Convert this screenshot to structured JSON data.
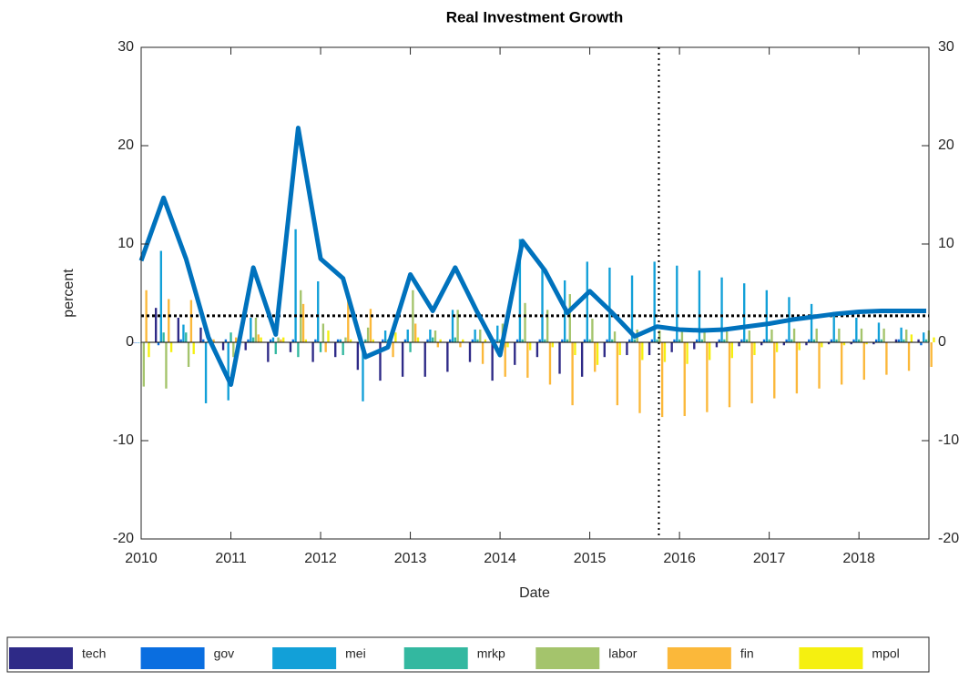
{
  "chart_data": {
    "type": "bar",
    "title": "Real Investment Growth",
    "xlabel": "Date",
    "ylabel": "percent",
    "x": [
      2010,
      2010.25,
      2010.5,
      2010.75,
      2011,
      2011.25,
      2011.5,
      2011.75,
      2012,
      2012.25,
      2012.5,
      2012.75,
      2013,
      2013.25,
      2013.5,
      2013.75,
      2014,
      2014.25,
      2014.5,
      2014.75,
      2015,
      2015.25,
      2015.5,
      2015.75,
      2016,
      2016.25,
      2016.5,
      2016.75,
      2017,
      2017.25,
      2017.5,
      2017.75,
      2018,
      2018.25,
      2018.5,
      2018.75
    ],
    "xlim": [
      2010,
      2018.78
    ],
    "xticks": [
      2010,
      2011,
      2012,
      2013,
      2014,
      2015,
      2016,
      2017,
      2018
    ],
    "ylim": [
      -20,
      30
    ],
    "yticks": [
      -20,
      -10,
      0,
      10,
      20,
      30
    ],
    "y2lim": [
      -20,
      30
    ],
    "y2ticks": [
      -20,
      -10,
      0,
      10,
      20,
      30
    ],
    "legend": "bottom",
    "series": [
      {
        "name": "tech",
        "color": "#2e2a87",
        "values": [
          0,
          3.5,
          2.5,
          1.5,
          -0.8,
          -0.8,
          -2,
          -1,
          -2,
          -1.5,
          -2.8,
          -3.9,
          -3.5,
          -3.5,
          -3,
          -2,
          -3.9,
          -2.3,
          -1.5,
          -3.2,
          -3.5,
          -1.5,
          -1.3,
          -1.3,
          -1,
          -0.7,
          -0.5,
          -0.4,
          -0.3,
          -0.3,
          -0.3,
          -0.2,
          -0.2,
          -0.2,
          0.3,
          0.3
        ]
      },
      {
        "name": "gov",
        "color": "#0a6ee0",
        "values": [
          0,
          -0.3,
          0.3,
          0.3,
          0.3,
          0.3,
          0.3,
          0.3,
          0.3,
          0.3,
          0.3,
          0.3,
          0.3,
          0.3,
          0.3,
          0.3,
          0.3,
          0.3,
          0.3,
          0.3,
          0.3,
          0.3,
          0.3,
          0.3,
          0.3,
          0.3,
          0.3,
          0.3,
          0.3,
          0.3,
          0.3,
          0.3,
          0.3,
          0.3,
          0.3,
          -0.3
        ]
      },
      {
        "name": "mei",
        "color": "#12a0d8",
        "values": [
          0,
          9.3,
          1.8,
          -6.2,
          -5.9,
          2.5,
          0.5,
          11.5,
          6.2,
          0.3,
          -6,
          1.2,
          1.3,
          1.3,
          3.3,
          1.3,
          1.7,
          10.5,
          7.8,
          6.3,
          8.2,
          7.6,
          6.8,
          8.2,
          7.8,
          7.3,
          6.6,
          6,
          5.3,
          4.6,
          3.9,
          3.1,
          2.5,
          2,
          1.5,
          1
        ]
      },
      {
        "name": "mrkp",
        "color": "#33b8a0",
        "values": [
          0,
          1,
          1,
          0.3,
          1,
          0.5,
          -1.2,
          -1.5,
          -1,
          -1.3,
          0.3,
          0.3,
          -1,
          0.5,
          0.5,
          0.3,
          0.3,
          0.3,
          0.3,
          0.3,
          0.3,
          0.3,
          0.3,
          0.3,
          0.3,
          0.3,
          0.3,
          0.3,
          0.3,
          0.3,
          0.3,
          0.3,
          0.3,
          0.3,
          0.3,
          0.3
        ]
      },
      {
        "name": "labor",
        "color": "#a4c46c",
        "values": [
          -4.5,
          -4.7,
          -2.5,
          -0.3,
          -1.5,
          2.5,
          0.5,
          5.3,
          1.9,
          0.5,
          1.5,
          0.3,
          5.3,
          1.2,
          3.3,
          1.3,
          1.9,
          4,
          3.3,
          4.9,
          2.4,
          1.1,
          1.3,
          1.2,
          1.3,
          1.3,
          1.2,
          1.2,
          1.3,
          1.4,
          1.4,
          1.4,
          1.4,
          1.4,
          1.3,
          1.2
        ]
      },
      {
        "name": "fin",
        "color": "#fbb83a",
        "values": [
          5.3,
          4.4,
          4.3,
          0.3,
          0.5,
          0.8,
          0.3,
          3.9,
          -1,
          4.4,
          3.4,
          -1.5,
          1.9,
          -0.5,
          -0.5,
          -2.2,
          -3.5,
          -3.6,
          -4.3,
          -6.4,
          -3,
          -6.4,
          -7.2,
          -7.6,
          -7.5,
          -7.1,
          -6.6,
          -6.2,
          -5.7,
          -5.2,
          -4.7,
          -4.3,
          -3.8,
          -3.3,
          -2.9,
          -2.5
        ]
      },
      {
        "name": "mpol",
        "color": "#f5f010",
        "values": [
          -1.5,
          -1,
          -1.2,
          0,
          -0.5,
          0.5,
          0.5,
          0.3,
          1.2,
          0.3,
          0.3,
          1,
          0.5,
          0.3,
          0.3,
          0.3,
          -0.5,
          -0.8,
          -0.5,
          -1.3,
          -2.3,
          -1.3,
          -1.8,
          -2,
          -2.2,
          -1.8,
          -1.6,
          -1.3,
          -1,
          -0.8,
          -0.5,
          -0.3,
          -0.2,
          0,
          0.8,
          0.5
        ]
      }
    ],
    "line": {
      "color": "#0072bd",
      "values": [
        8.3,
        14.7,
        8.5,
        0.5,
        -4.3,
        7.6,
        0.8,
        21.8,
        8.5,
        6.5,
        -1.5,
        -0.5,
        6.9,
        3.2,
        7.6,
        3.0,
        -1.3,
        10.3,
        7.3,
        3.0,
        5.2,
        3.0,
        0.6,
        1.6,
        1.3,
        1.2,
        1.3,
        1.6,
        1.9,
        2.3,
        2.6,
        2.9,
        3.1,
        3.2,
        3.2,
        3.2
      ]
    },
    "hline": 2.7,
    "vline": 2015.77
  }
}
